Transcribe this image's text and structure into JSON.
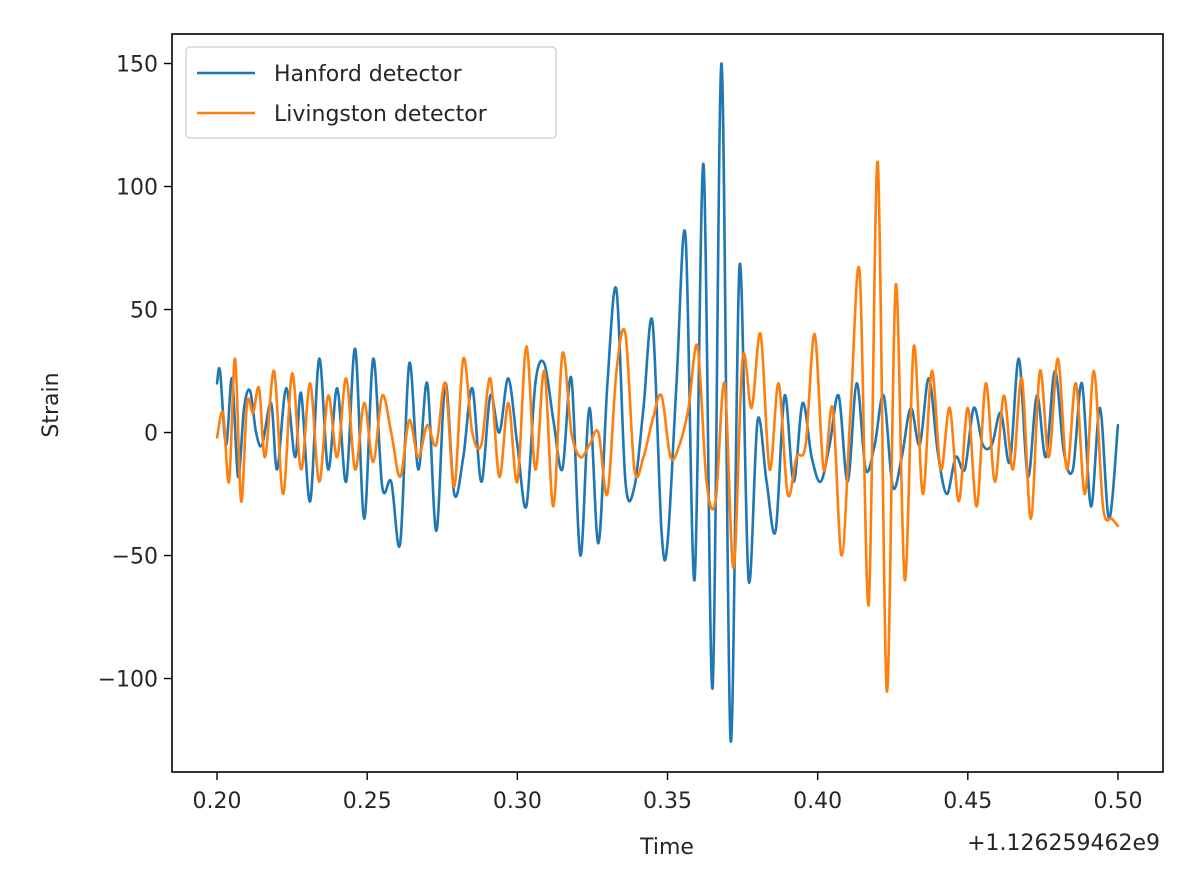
{
  "chart_data": {
    "type": "line",
    "title": "",
    "xlabel": "Time",
    "ylabel": "Strain",
    "x_offset_label": "+1.126259462e9",
    "xlim": [
      0.185,
      0.515
    ],
    "ylim": [
      -138,
      162
    ],
    "x_ticks": [
      0.2,
      0.25,
      0.3,
      0.35,
      0.4,
      0.45,
      0.5
    ],
    "x_tick_labels": [
      "0.20",
      "0.25",
      "0.30",
      "0.35",
      "0.40",
      "0.45",
      "0.50"
    ],
    "y_ticks": [
      -100,
      -50,
      0,
      50,
      100,
      150
    ],
    "y_tick_labels": [
      "−100",
      "−50",
      "0",
      "50",
      "100",
      "150"
    ],
    "legend_position": "top-left",
    "series": [
      {
        "name": "Hanford detector",
        "color": "#1f77b4",
        "x": [
          0.2,
          0.201,
          0.203,
          0.205,
          0.207,
          0.209,
          0.211,
          0.213,
          0.215,
          0.218,
          0.22,
          0.223,
          0.226,
          0.228,
          0.231,
          0.234,
          0.237,
          0.24,
          0.243,
          0.246,
          0.249,
          0.252,
          0.255,
          0.258,
          0.261,
          0.264,
          0.267,
          0.27,
          0.273,
          0.276,
          0.279,
          0.282,
          0.285,
          0.288,
          0.291,
          0.294,
          0.297,
          0.3,
          0.303,
          0.306,
          0.309,
          0.312,
          0.315,
          0.318,
          0.321,
          0.324,
          0.327,
          0.33,
          0.333,
          0.336,
          0.339,
          0.342,
          0.345,
          0.348,
          0.35,
          0.353,
          0.356,
          0.359,
          0.362,
          0.365,
          0.368,
          0.371,
          0.374,
          0.377,
          0.38,
          0.383,
          0.386,
          0.389,
          0.392,
          0.395,
          0.398,
          0.401,
          0.404,
          0.407,
          0.41,
          0.413,
          0.416,
          0.419,
          0.422,
          0.425,
          0.428,
          0.431,
          0.434,
          0.437,
          0.44,
          0.443,
          0.446,
          0.449,
          0.452,
          0.455,
          0.458,
          0.461,
          0.464,
          0.467,
          0.47,
          0.473,
          0.476,
          0.479,
          0.482,
          0.485,
          0.488,
          0.491,
          0.494,
          0.497,
          0.5
        ],
        "y": [
          20,
          25,
          -5,
          22,
          -18,
          10,
          17,
          0,
          -5,
          12,
          -15,
          18,
          -10,
          16,
          -28,
          30,
          -15,
          18,
          -20,
          34,
          -35,
          30,
          -22,
          -20,
          -45,
          28,
          -15,
          20,
          -40,
          20,
          -25,
          -10,
          18,
          -20,
          15,
          0,
          22,
          -5,
          -30,
          20,
          28,
          5,
          -15,
          22,
          -50,
          10,
          -45,
          20,
          58,
          -20,
          -22,
          10,
          45,
          -40,
          -45,
          20,
          80,
          -60,
          109,
          -104,
          150,
          -125,
          68,
          -60,
          5,
          -20,
          -40,
          15,
          -20,
          12,
          -10,
          -20,
          -5,
          15,
          -20,
          20,
          -15,
          -5,
          15,
          -22,
          -10,
          10,
          -5,
          22,
          -8,
          -25,
          -10,
          -15,
          10,
          -5,
          -5,
          8,
          -12,
          30,
          -18,
          15,
          -10,
          25,
          -8,
          -15,
          20,
          -30,
          10,
          -35,
          3
        ]
      },
      {
        "name": "Livingston detector",
        "color": "#ff7f0e",
        "x": [
          0.2,
          0.202,
          0.204,
          0.206,
          0.208,
          0.21,
          0.212,
          0.214,
          0.216,
          0.219,
          0.222,
          0.225,
          0.228,
          0.231,
          0.234,
          0.237,
          0.24,
          0.243,
          0.246,
          0.249,
          0.252,
          0.255,
          0.258,
          0.261,
          0.264,
          0.267,
          0.27,
          0.273,
          0.276,
          0.279,
          0.282,
          0.285,
          0.288,
          0.291,
          0.294,
          0.297,
          0.3,
          0.303,
          0.306,
          0.309,
          0.312,
          0.315,
          0.318,
          0.321,
          0.324,
          0.327,
          0.33,
          0.333,
          0.336,
          0.339,
          0.342,
          0.345,
          0.348,
          0.351,
          0.354,
          0.357,
          0.36,
          0.363,
          0.366,
          0.369,
          0.372,
          0.375,
          0.378,
          0.381,
          0.384,
          0.387,
          0.39,
          0.393,
          0.396,
          0.399,
          0.402,
          0.405,
          0.408,
          0.411,
          0.414,
          0.417,
          0.42,
          0.423,
          0.426,
          0.429,
          0.432,
          0.435,
          0.438,
          0.441,
          0.444,
          0.447,
          0.45,
          0.453,
          0.456,
          0.459,
          0.462,
          0.465,
          0.468,
          0.471,
          0.474,
          0.477,
          0.48,
          0.483,
          0.486,
          0.489,
          0.492,
          0.495,
          0.498,
          0.5
        ],
        "y": [
          -2,
          8,
          -20,
          30,
          -28,
          12,
          8,
          18,
          -10,
          25,
          -25,
          24,
          -15,
          20,
          -20,
          15,
          -10,
          22,
          -15,
          12,
          -12,
          15,
          0,
          -18,
          5,
          -10,
          3,
          -5,
          20,
          -22,
          30,
          0,
          -5,
          22,
          -18,
          12,
          -20,
          35,
          -15,
          25,
          -30,
          32,
          0,
          -10,
          -5,
          0,
          -25,
          25,
          40,
          -15,
          -10,
          5,
          15,
          -10,
          -5,
          10,
          35,
          -20,
          -28,
          20,
          -55,
          30,
          10,
          40,
          -15,
          20,
          -25,
          -10,
          -5,
          40,
          -15,
          10,
          -50,
          10,
          65,
          -70,
          110,
          -105,
          60,
          -60,
          35,
          -25,
          25,
          -15,
          10,
          -28,
          10,
          -30,
          20,
          -20,
          15,
          -15,
          22,
          -35,
          25,
          -10,
          30,
          -15,
          20,
          -25,
          25,
          -30,
          -35,
          -38
        ]
      }
    ]
  }
}
